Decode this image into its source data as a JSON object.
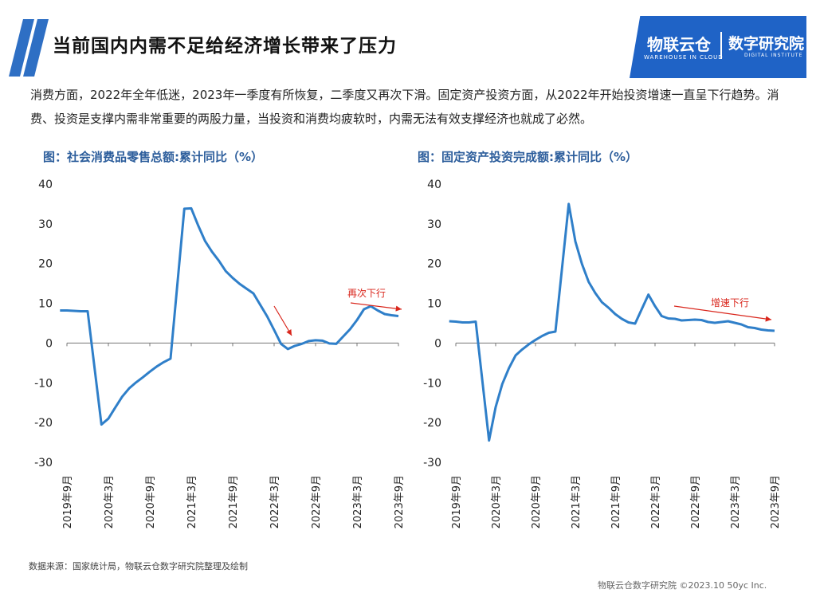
{
  "header": {
    "title": "当前国内内需不足给经济增长带来了压力",
    "logo_name": "物联云仓",
    "logo_sub": "WAREHOUSE IN CLOUD",
    "logo_name2": "数字研究院",
    "logo_sub2": "DIGITAL INSTITUTE"
  },
  "intro": "消费方面，2022年全年低迷，2023年一季度有所恢复，二季度又再次下滑。固定资产投资方面，从2022年开始投资增速一直呈下行趋势。消费、投资是支撑内需非常重要的两股力量，当投资和消费均疲软时，内需无法有效支撑经济也就成了必然。",
  "colors": {
    "line": "#2f7fc9",
    "annotation": "#d9261c",
    "title": "#2d5e9c",
    "brand": "#1f63c6"
  },
  "chart_data": [
    {
      "type": "line",
      "title": "图：社会消费品零售总额:累计同比（%）",
      "ylim": [
        -30,
        40
      ],
      "yticks": [
        "40",
        "30",
        "20",
        "10",
        "0",
        "-10",
        "-20",
        "-30"
      ],
      "x_tick_labels": [
        "2019年9月",
        "2020年3月",
        "2020年9月",
        "2021年3月",
        "2021年9月",
        "2022年3月",
        "2022年9月",
        "2023年3月",
        "2023年9月"
      ],
      "x": [
        "2019-08",
        "2019-09",
        "2019-10",
        "2019-11",
        "2019-12",
        "2020-02",
        "2020-03",
        "2020-04",
        "2020-05",
        "2020-06",
        "2020-07",
        "2020-08",
        "2020-09",
        "2020-10",
        "2020-11",
        "2020-12",
        "2021-02",
        "2021-03",
        "2021-04",
        "2021-05",
        "2021-06",
        "2021-07",
        "2021-08",
        "2021-09",
        "2021-10",
        "2021-11",
        "2021-12",
        "2022-02",
        "2022-03",
        "2022-04",
        "2022-05",
        "2022-06",
        "2022-07",
        "2022-08",
        "2022-09",
        "2022-10",
        "2022-11",
        "2022-12",
        "2023-02",
        "2023-03",
        "2023-04",
        "2023-05",
        "2023-06",
        "2023-07",
        "2023-08",
        "2023-09"
      ],
      "values": [
        8.2,
        8.2,
        8.1,
        8.0,
        8.0,
        -20.5,
        -19.0,
        -16.2,
        -13.5,
        -11.4,
        -9.9,
        -8.6,
        -7.2,
        -5.9,
        -4.8,
        -3.9,
        33.8,
        33.9,
        29.6,
        25.7,
        23.0,
        20.7,
        18.1,
        16.4,
        14.9,
        13.7,
        12.5,
        6.7,
        3.3,
        -0.2,
        -1.5,
        -0.7,
        -0.2,
        0.5,
        0.7,
        0.6,
        -0.1,
        -0.2,
        3.5,
        5.8,
        8.5,
        9.3,
        8.2,
        7.3,
        7.0,
        6.8
      ],
      "annotation": "再次下行"
    },
    {
      "type": "line",
      "title": "图：固定资产投资完成额:累计同比（%）",
      "ylim": [
        -30,
        40
      ],
      "yticks": [
        "40",
        "30",
        "20",
        "10",
        "0",
        "-10",
        "-20",
        "-30"
      ],
      "x_tick_labels": [
        "2019年9月",
        "2020年3月",
        "2020年9月",
        "2021年3月",
        "2021年9月",
        "2022年3月",
        "2022年9月",
        "2023年3月",
        "2023年9月"
      ],
      "x": [
        "2019-08",
        "2019-09",
        "2019-10",
        "2019-11",
        "2019-12",
        "2020-02",
        "2020-03",
        "2020-04",
        "2020-05",
        "2020-06",
        "2020-07",
        "2020-08",
        "2020-09",
        "2020-10",
        "2020-11",
        "2020-12",
        "2021-02",
        "2021-03",
        "2021-04",
        "2021-05",
        "2021-06",
        "2021-07",
        "2021-08",
        "2021-09",
        "2021-10",
        "2021-11",
        "2021-12",
        "2022-02",
        "2022-03",
        "2022-04",
        "2022-05",
        "2022-06",
        "2022-07",
        "2022-08",
        "2022-09",
        "2022-10",
        "2022-11",
        "2022-12",
        "2023-02",
        "2023-03",
        "2023-04",
        "2023-05",
        "2023-06",
        "2023-07",
        "2023-08",
        "2023-09"
      ],
      "values": [
        5.5,
        5.4,
        5.2,
        5.2,
        5.4,
        -24.5,
        -16.1,
        -10.3,
        -6.3,
        -3.1,
        -1.6,
        -0.3,
        0.8,
        1.8,
        2.6,
        2.9,
        35.0,
        25.6,
        19.9,
        15.4,
        12.6,
        10.3,
        8.9,
        7.3,
        6.1,
        5.2,
        4.9,
        12.2,
        9.3,
        6.8,
        6.2,
        6.1,
        5.7,
        5.8,
        5.9,
        5.8,
        5.3,
        5.1,
        5.5,
        5.1,
        4.7,
        4.0,
        3.8,
        3.4,
        3.2,
        3.1
      ],
      "annotation": "增速下行"
    }
  ],
  "source": "数据来源：国家统计局，物联云仓数字研究院整理及绘制",
  "footer": "物联云仓数字研究院   ©2023.10 50yc Inc."
}
